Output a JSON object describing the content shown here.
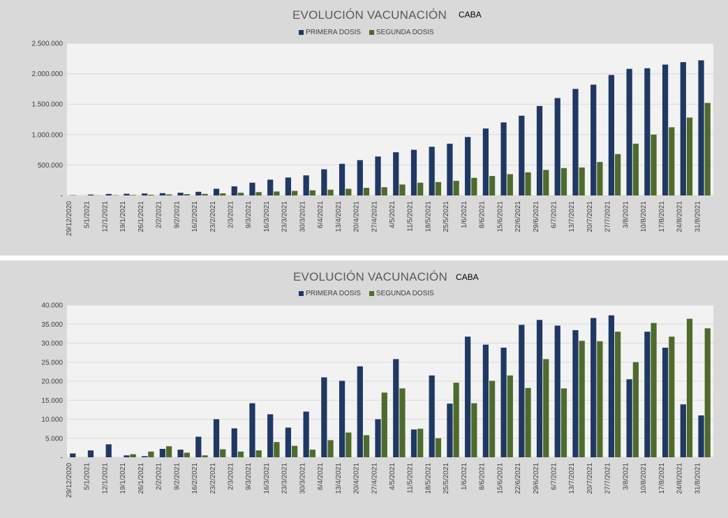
{
  "colors": {
    "first": "#1f3864",
    "second": "#4e6b2b",
    "plot_bg": "#f2f2f2",
    "panel_bg": "#d9d9d9",
    "grid": "#d9d9d9"
  },
  "charts": [
    {
      "title": "EVOLUCIÓN VACUNACIÓN",
      "subtitle": "CABA",
      "legend": [
        "PRIMERA DOSIS",
        "SEGUNDA DOSIS"
      ],
      "yticks": [
        "2.500.000",
        "2.000.000",
        "1.500.000",
        "1.000.000",
        "500.000",
        "-"
      ]
    },
    {
      "title": "EVOLUCIÓN VACUNACIÓN",
      "subtitle": "CABA",
      "legend": [
        "PRIMERA DOSIS",
        "SEGUNDA DOSIS"
      ],
      "yticks": [
        "40.000",
        "35.000",
        "30.000",
        "25.000",
        "20.000",
        "15.000",
        "10.000",
        "5.000",
        "-"
      ]
    }
  ],
  "chart_data": [
    {
      "type": "bar",
      "title": "EVOLUCIÓN VACUNACIÓN",
      "subtitle": "CABA",
      "ylim": [
        0,
        2500000
      ],
      "grid": true,
      "legend": "top-center",
      "x": [
        "29/12/2020",
        "5/1/2021",
        "12/1/2021",
        "19/1/2021",
        "26/1/2021",
        "2/2/2021",
        "9/2/2021",
        "16/2/2021",
        "23/2/2021",
        "2/3/2021",
        "9/3/2021",
        "16/3/2021",
        "23/3/2021",
        "30/3/2021",
        "6/4/2021",
        "13/4/2021",
        "20/4/2021",
        "27/4/2021",
        "4/5/2021",
        "11/5/2021",
        "18/5/2021",
        "25/5/2021",
        "1/6/2021",
        "8/6/2021",
        "15/6/2021",
        "22/6/2021",
        "29/6/2021",
        "6/7/2021",
        "13/7/2021",
        "20/7/2021",
        "27/7/2021",
        "3/8/2021",
        "10/8/2021",
        "17/8/2021",
        "24/8/2021",
        "31/8/2021"
      ],
      "series": [
        {
          "name": "PRIMERA DOSIS",
          "values": [
            5000,
            15000,
            25000,
            28000,
            32000,
            38000,
            45000,
            60000,
            110000,
            150000,
            210000,
            260000,
            295000,
            330000,
            430000,
            520000,
            580000,
            640000,
            710000,
            750000,
            800000,
            850000,
            960000,
            1100000,
            1200000,
            1310000,
            1470000,
            1600000,
            1750000,
            1820000,
            1980000,
            2080000,
            2090000,
            2150000,
            2190000,
            2220000
          ]
        },
        {
          "name": "SEGUNDA DOSIS",
          "values": [
            0,
            3000,
            5000,
            8000,
            12000,
            18000,
            22000,
            26000,
            35000,
            45000,
            55000,
            65000,
            75000,
            85000,
            95000,
            110000,
            125000,
            135000,
            180000,
            210000,
            220000,
            240000,
            290000,
            320000,
            350000,
            380000,
            420000,
            450000,
            460000,
            550000,
            680000,
            850000,
            1000000,
            1120000,
            1280000,
            1520000
          ]
        }
      ]
    },
    {
      "type": "bar",
      "title": "EVOLUCIÓN VACUNACIÓN",
      "subtitle": "CABA",
      "ylim": [
        0,
        40000
      ],
      "grid": true,
      "legend": "top-center",
      "x": [
        "29/12/2020",
        "5/1/2021",
        "12/1/2021",
        "19/1/2021",
        "26/1/2021",
        "2/2/2021",
        "9/2/2021",
        "16/2/2021",
        "23/2/2021",
        "2/3/2021",
        "9/3/2021",
        "16/3/2021",
        "23/3/2021",
        "30/3/2021",
        "6/4/2021",
        "13/4/2021",
        "20/4/2021",
        "27/4/2021",
        "4/5/2021",
        "11/5/2021",
        "18/5/2021",
        "25/5/2021",
        "1/6/2021",
        "8/6/2021",
        "15/6/2021",
        "22/6/2021",
        "29/6/2021",
        "6/7/2021",
        "13/7/2021",
        "20/7/2021",
        "27/7/2021",
        "3/8/2021",
        "10/8/2021",
        "17/8/2021",
        "24/8/2021",
        "31/8/2021"
      ],
      "series": [
        {
          "name": "PRIMERA DOSIS",
          "values": [
            1000,
            1800,
            3400,
            500,
            300,
            2200,
            2000,
            5400,
            10000,
            7600,
            14200,
            11300,
            7800,
            12000,
            21000,
            20100,
            23900,
            10000,
            25800,
            7300,
            21500,
            14100,
            31700,
            29600,
            28800,
            34800,
            36100,
            34600,
            33400,
            36600,
            37300,
            20500,
            33000,
            28800,
            13900,
            11000
          ]
        },
        {
          "name": "SEGUNDA DOSIS",
          "values": [
            0,
            0,
            0,
            800,
            1500,
            2900,
            1200,
            500,
            2100,
            1500,
            1800,
            4000,
            3000,
            2000,
            4500,
            6500,
            5800,
            17000,
            18100,
            7500,
            5000,
            19600,
            14200,
            20100,
            21500,
            18200,
            25800,
            18100,
            30600,
            30500,
            33000,
            25000,
            35300,
            31700,
            36400,
            33900
          ]
        }
      ]
    }
  ]
}
